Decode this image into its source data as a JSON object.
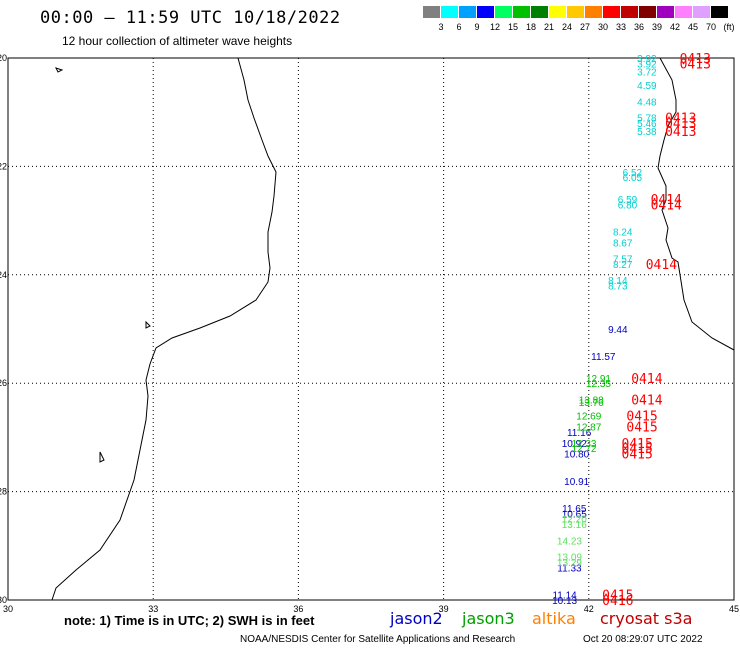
{
  "header": {
    "title": "00:00 – 11:59 UTC 10/18/2022",
    "subtitle": "12 hour collection of altimeter wave heights"
  },
  "legend": {
    "unit": "(ft)",
    "colors": [
      "#808080",
      "#00ffff",
      "#00a0ff",
      "#0000ff",
      "#00ff60",
      "#00c000",
      "#008000",
      "#ffff00",
      "#ffc800",
      "#ff8000",
      "#ff0000",
      "#c00000",
      "#800000",
      "#a000c0",
      "#ff80ff",
      "#e0a0ff",
      "#000000"
    ],
    "labels": [
      "3",
      "6",
      "9",
      "12",
      "15",
      "18",
      "21",
      "24",
      "27",
      "30",
      "33",
      "36",
      "39",
      "42",
      "45",
      "70"
    ]
  },
  "axes": {
    "x_ticks": [
      "30",
      "33",
      "36",
      "39",
      "42",
      "45"
    ],
    "y_ticks": [
      "-20",
      "-22",
      "-24",
      "-26",
      "-28",
      "-30"
    ]
  },
  "chart_data": {
    "type": "scatter",
    "xlim": [
      30,
      45
    ],
    "ylim": [
      -30,
      -20
    ],
    "grid": true,
    "series": [
      {
        "name": "jason2",
        "color": "#0000c0",
        "points": [
          {
            "lat": -25.0,
            "lon": 42.6,
            "swh": "9.44"
          },
          {
            "lat": -25.5,
            "lon": 42.3,
            "swh": "11.57"
          },
          {
            "lat": -26.9,
            "lon": 41.8,
            "swh": "11.16"
          },
          {
            "lat": -27.1,
            "lon": 41.7,
            "swh": "10.92"
          },
          {
            "lat": -27.3,
            "lon": 41.75,
            "swh": "10.80"
          },
          {
            "lat": -27.8,
            "lon": 41.75,
            "swh": "10.91"
          },
          {
            "lat": -28.3,
            "lon": 41.7,
            "swh": "11.65"
          },
          {
            "lat": -28.4,
            "lon": 41.7,
            "swh": "10.65"
          },
          {
            "lat": -29.4,
            "lon": 41.6,
            "swh": "11.33"
          },
          {
            "lat": -29.9,
            "lon": 41.5,
            "swh": "11.14"
          },
          {
            "lat": -30.0,
            "lon": 41.5,
            "swh": "10.13"
          }
        ]
      },
      {
        "name": "jason3",
        "color": "#00c000",
        "points": [
          {
            "lat": -25.9,
            "lon": 42.2,
            "swh": "12.91"
          },
          {
            "lat": -26.0,
            "lon": 42.2,
            "swh": "12.35"
          },
          {
            "lat": -26.3,
            "lon": 42.05,
            "swh": "13.88"
          },
          {
            "lat": -26.35,
            "lon": 42.05,
            "swh": "13.76"
          },
          {
            "lat": -26.6,
            "lon": 42.0,
            "swh": "12.69"
          },
          {
            "lat": -26.8,
            "lon": 42.0,
            "swh": "12.87"
          },
          {
            "lat": -27.1,
            "lon": 41.9,
            "swh": "12.33"
          },
          {
            "lat": -27.2,
            "lon": 41.9,
            "swh": "12.72"
          }
        ]
      },
      {
        "name": "altika",
        "color": "#ff8000",
        "points": []
      },
      {
        "name": "jason2-light",
        "color": "#60e060",
        "points": [
          {
            "lat": -28.5,
            "lon": 41.7,
            "swh": "12.20"
          },
          {
            "lat": -28.6,
            "lon": 41.7,
            "swh": "13.16"
          },
          {
            "lat": -28.9,
            "lon": 41.6,
            "swh": "14.23"
          },
          {
            "lat": -29.2,
            "lon": 41.6,
            "swh": "13.09"
          },
          {
            "lat": -29.3,
            "lon": 41.6,
            "swh": "13.29"
          }
        ]
      },
      {
        "name": "cryosat-cyan",
        "color": "#00d0d0",
        "points": [
          {
            "lat": -20.0,
            "lon": 43.2,
            "swh": "3.92"
          },
          {
            "lat": -20.1,
            "lon": 43.2,
            "swh": "3.92"
          },
          {
            "lat": -20.25,
            "lon": 43.2,
            "swh": "3.72"
          },
          {
            "lat": -20.5,
            "lon": 43.2,
            "swh": "4.59"
          },
          {
            "lat": -20.8,
            "lon": 43.2,
            "swh": "4.48"
          },
          {
            "lat": -21.1,
            "lon": 43.2,
            "swh": "5.78"
          },
          {
            "lat": -21.2,
            "lon": 43.2,
            "swh": "5.46"
          },
          {
            "lat": -21.35,
            "lon": 43.2,
            "swh": "5.38"
          },
          {
            "lat": -22.1,
            "lon": 42.9,
            "swh": "6.52"
          },
          {
            "lat": -22.2,
            "lon": 42.9,
            "swh": "6.05"
          },
          {
            "lat": -22.6,
            "lon": 42.8,
            "swh": "6.59"
          },
          {
            "lat": -22.7,
            "lon": 42.8,
            "swh": "6.80"
          },
          {
            "lat": -23.2,
            "lon": 42.7,
            "swh": "8.24"
          },
          {
            "lat": -23.4,
            "lon": 42.7,
            "swh": "8.67"
          },
          {
            "lat": -23.7,
            "lon": 42.7,
            "swh": "7.57"
          },
          {
            "lat": -23.8,
            "lon": 42.7,
            "swh": "8.27"
          },
          {
            "lat": -24.1,
            "lon": 42.6,
            "swh": "8.14"
          },
          {
            "lat": -24.2,
            "lon": 42.6,
            "swh": "8.73"
          }
        ]
      }
    ],
    "time_tags": {
      "color": "#ff0000",
      "items": [
        {
          "lat": -20.0,
          "lon": 44.2,
          "text": "0413"
        },
        {
          "lat": -20.1,
          "lon": 44.2,
          "text": "0413"
        },
        {
          "lat": -21.1,
          "lon": 43.9,
          "text": "0413"
        },
        {
          "lat": -21.2,
          "lon": 43.9,
          "text": "0413"
        },
        {
          "lat": -21.35,
          "lon": 43.9,
          "text": "0413"
        },
        {
          "lat": -22.6,
          "lon": 43.6,
          "text": "0414"
        },
        {
          "lat": -22.7,
          "lon": 43.6,
          "text": "0414"
        },
        {
          "lat": -23.8,
          "lon": 43.5,
          "text": "0414"
        },
        {
          "lat": -25.9,
          "lon": 43.2,
          "text": "0414"
        },
        {
          "lat": -26.3,
          "lon": 43.2,
          "text": "0414"
        },
        {
          "lat": -26.6,
          "lon": 43.1,
          "text": "0415"
        },
        {
          "lat": -26.8,
          "lon": 43.1,
          "text": "0415"
        },
        {
          "lat": -27.1,
          "lon": 43.0,
          "text": "0415"
        },
        {
          "lat": -27.2,
          "lon": 43.0,
          "text": "0415"
        },
        {
          "lat": -27.3,
          "lon": 43.0,
          "text": "0415"
        },
        {
          "lat": -29.9,
          "lon": 42.6,
          "text": "0415"
        },
        {
          "lat": -30.0,
          "lon": 42.6,
          "text": "0416"
        }
      ]
    }
  },
  "footer": {
    "note": "note: 1) Time is in UTC; 2) SWH is in feet",
    "missions": [
      {
        "label": "jason2",
        "color": "#0000c0"
      },
      {
        "label": "jason3",
        "color": "#00a000"
      },
      {
        "label": "altika",
        "color": "#ff8000"
      },
      {
        "label": "cryosat s3a",
        "color": "#c00000"
      }
    ],
    "credit": "NOAA/NESDIS Center for Satellite Applications and Research",
    "timestamp": "Oct 20 08:29:07 UTC 2022"
  }
}
